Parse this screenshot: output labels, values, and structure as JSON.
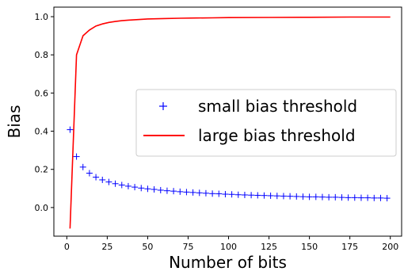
{
  "chart_data": {
    "type": "line",
    "xlabel": "Number of bits",
    "ylabel": "Bias",
    "xlim": [
      -8,
      207
    ],
    "ylim": [
      -0.15,
      1.05
    ],
    "xticks": [
      0,
      25,
      50,
      75,
      100,
      125,
      150,
      175,
      200
    ],
    "yticks": [
      0.0,
      0.2,
      0.4,
      0.6,
      0.8,
      1.0
    ],
    "xtick_labels": [
      "0",
      "25",
      "50",
      "75",
      "100",
      "125",
      "150",
      "175",
      "200"
    ],
    "ytick_labels": [
      "0.0",
      "0.2",
      "0.4",
      "0.6",
      "0.8",
      "1.0"
    ],
    "grid": false,
    "legend_position": "center-right",
    "series": [
      {
        "name": "small bias threshold",
        "style": "scatter",
        "marker": "+",
        "color": "#0000ff",
        "x": [
          2,
          6,
          10,
          14,
          18,
          22,
          26,
          30,
          34,
          38,
          42,
          46,
          50,
          54,
          58,
          62,
          66,
          70,
          74,
          78,
          82,
          86,
          90,
          94,
          98,
          102,
          106,
          110,
          114,
          118,
          122,
          126,
          130,
          134,
          138,
          142,
          146,
          150,
          154,
          158,
          162,
          166,
          170,
          174,
          178,
          182,
          186,
          190,
          194,
          198
        ],
        "y": [
          0.408,
          0.267,
          0.212,
          0.18,
          0.159,
          0.145,
          0.134,
          0.125,
          0.118,
          0.112,
          0.107,
          0.102,
          0.098,
          0.095,
          0.091,
          0.088,
          0.086,
          0.083,
          0.081,
          0.079,
          0.077,
          0.075,
          0.073,
          0.072,
          0.07,
          0.069,
          0.067,
          0.066,
          0.065,
          0.064,
          0.063,
          0.062,
          0.061,
          0.06,
          0.059,
          0.058,
          0.057,
          0.056,
          0.056,
          0.055,
          0.054,
          0.054,
          0.053,
          0.052,
          0.052,
          0.051,
          0.051,
          0.05,
          0.05,
          0.049
        ]
      },
      {
        "name": "large bias threshold",
        "style": "line",
        "color": "#ff0000",
        "x": [
          2,
          6,
          10,
          14,
          18,
          22,
          26,
          30,
          34,
          38,
          42,
          46,
          50,
          60,
          70,
          80,
          90,
          100,
          125,
          150,
          175,
          200
        ],
        "y": [
          -0.11,
          0.8,
          0.9,
          0.93,
          0.951,
          0.962,
          0.97,
          0.975,
          0.979,
          0.982,
          0.984,
          0.986,
          0.988,
          0.99,
          0.992,
          0.993,
          0.994,
          0.995,
          0.996,
          0.997,
          0.998,
          0.998
        ]
      }
    ]
  }
}
